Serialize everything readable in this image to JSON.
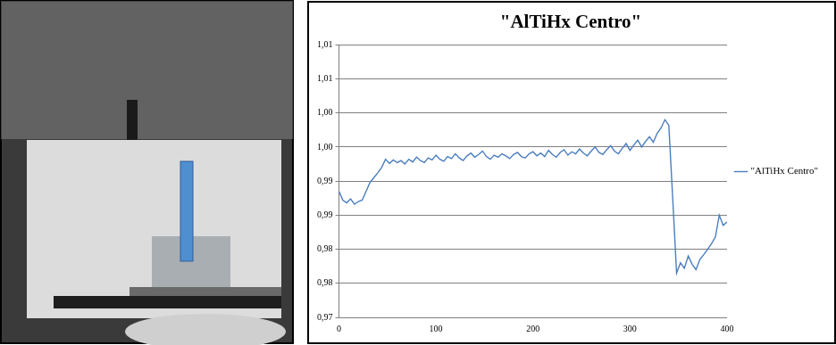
{
  "chart_data": {
    "type": "line",
    "title": "\"AlTiHx Centro\"",
    "x": [
      0,
      4,
      8,
      12,
      16,
      20,
      24,
      28,
      32,
      36,
      40,
      44,
      48,
      52,
      56,
      60,
      64,
      68,
      72,
      76,
      80,
      84,
      88,
      92,
      96,
      100,
      104,
      108,
      112,
      116,
      120,
      124,
      128,
      132,
      136,
      140,
      144,
      148,
      152,
      156,
      160,
      164,
      168,
      172,
      176,
      180,
      184,
      188,
      192,
      196,
      200,
      204,
      208,
      212,
      216,
      220,
      224,
      228,
      232,
      236,
      240,
      244,
      248,
      252,
      256,
      260,
      264,
      268,
      272,
      276,
      280,
      284,
      288,
      292,
      296,
      300,
      304,
      308,
      312,
      316,
      320,
      324,
      328,
      332,
      336,
      340,
      344,
      348,
      352,
      356,
      360,
      364,
      368,
      372,
      376,
      380,
      384,
      388,
      392,
      396,
      400
    ],
    "series": [
      {
        "name": "\"AlTiHx Centro\"",
        "color": "#4a7ebf",
        "values": [
          0.9885,
          0.9872,
          0.9868,
          0.9874,
          0.9866,
          0.987,
          0.9872,
          0.9885,
          0.9898,
          0.9905,
          0.9912,
          0.992,
          0.9932,
          0.9926,
          0.9931,
          0.9927,
          0.993,
          0.9925,
          0.9932,
          0.9928,
          0.9935,
          0.993,
          0.9927,
          0.9934,
          0.9931,
          0.9938,
          0.9932,
          0.9929,
          0.9936,
          0.9933,
          0.994,
          0.9934,
          0.993,
          0.9937,
          0.9941,
          0.9935,
          0.9939,
          0.9944,
          0.9936,
          0.9932,
          0.9938,
          0.9935,
          0.994,
          0.9937,
          0.9933,
          0.9939,
          0.9942,
          0.9936,
          0.9934,
          0.994,
          0.9943,
          0.9937,
          0.9941,
          0.9936,
          0.9945,
          0.9939,
          0.9935,
          0.9942,
          0.9946,
          0.9938,
          0.9943,
          0.994,
          0.9947,
          0.9941,
          0.9937,
          0.9944,
          0.995,
          0.9942,
          0.9939,
          0.9946,
          0.9952,
          0.9944,
          0.994,
          0.9948,
          0.9955,
          0.9945,
          0.9953,
          0.996,
          0.995,
          0.9958,
          0.9965,
          0.9957,
          0.997,
          0.9978,
          0.999,
          0.9982,
          0.9875,
          0.9765,
          0.978,
          0.9772,
          0.979,
          0.9778,
          0.977,
          0.9785,
          0.9792,
          0.98,
          0.9808,
          0.9818,
          0.985,
          0.9835,
          0.984
        ]
      }
    ],
    "xlim": [
      0,
      400
    ],
    "xticks": [
      0,
      100,
      200,
      300,
      400
    ],
    "ylim": [
      0.97,
      1.01
    ],
    "yticks": [
      {
        "value": 0.97,
        "label": "0,97"
      },
      {
        "value": 0.975,
        "label": "0,98"
      },
      {
        "value": 0.98,
        "label": "0,98"
      },
      {
        "value": 0.985,
        "label": "0,99"
      },
      {
        "value": 0.99,
        "label": "0,99"
      },
      {
        "value": 0.995,
        "label": "1,00"
      },
      {
        "value": 1.0,
        "label": "1,00"
      },
      {
        "value": 1.005,
        "label": "1,01"
      },
      {
        "value": 1.01,
        "label": "1,01"
      }
    ],
    "grid": "y",
    "legend": "right"
  }
}
